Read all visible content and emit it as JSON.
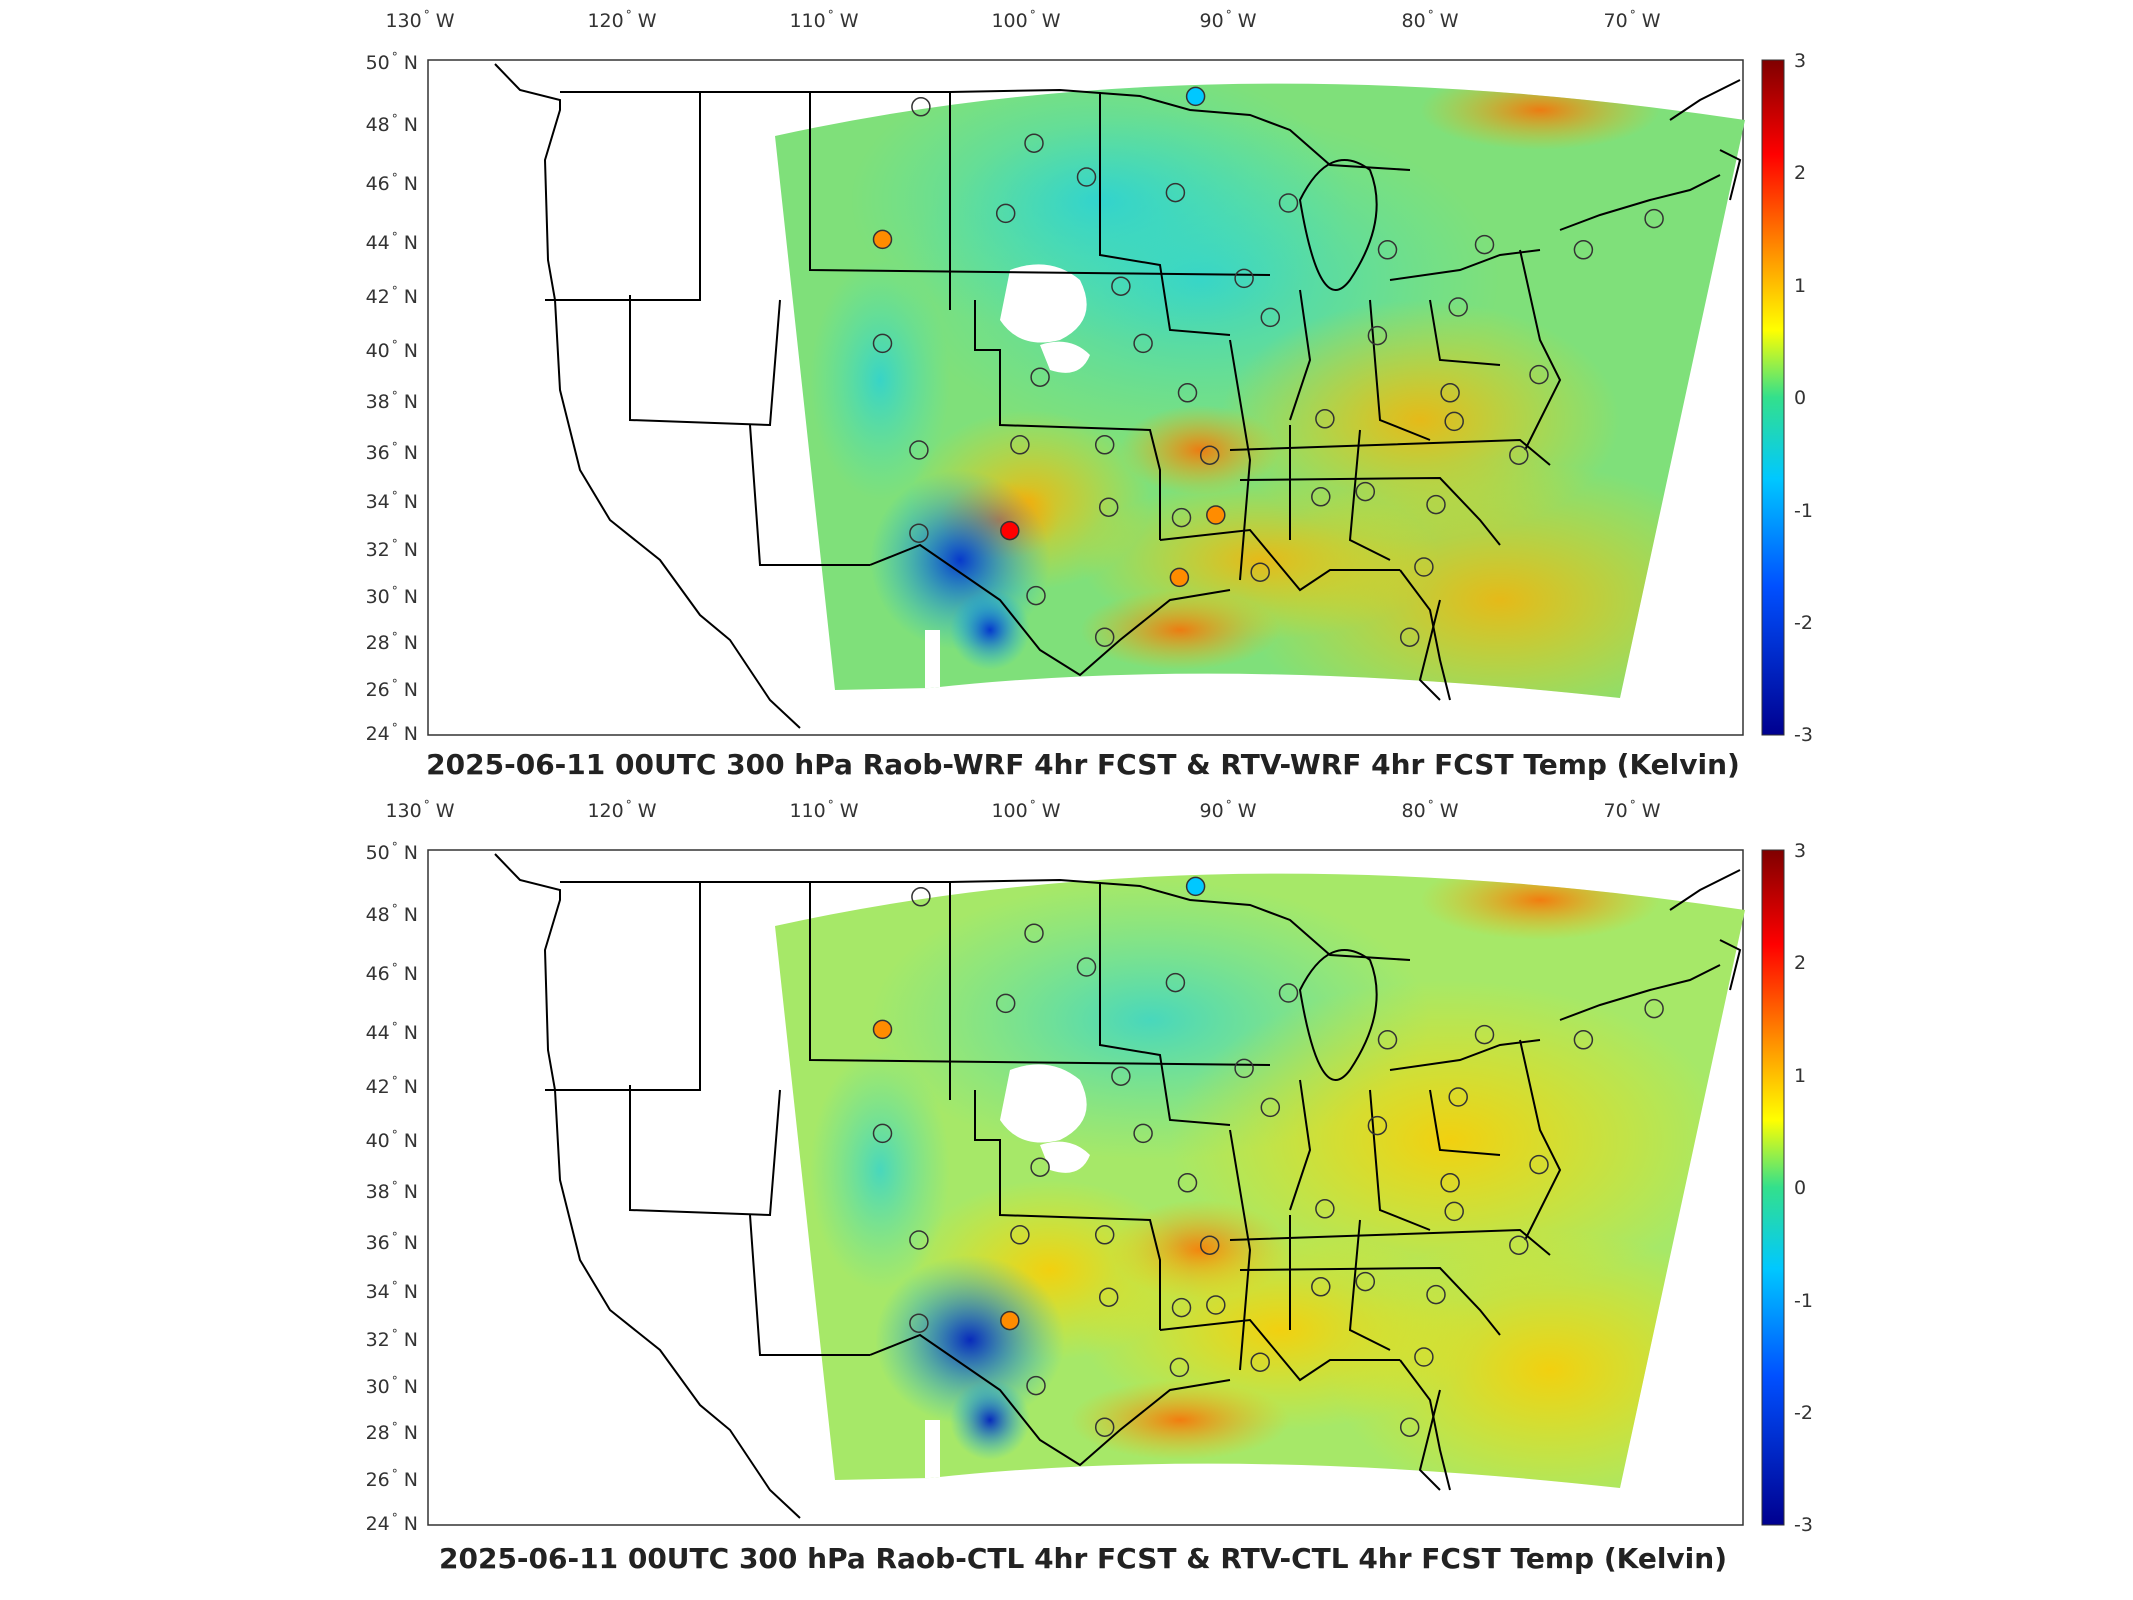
{
  "color_scale": {
    "ticks": [
      "3",
      "2",
      "1",
      "0",
      "-1",
      "-2",
      "-3"
    ],
    "stops": [
      "#7f0000",
      "#ff0000",
      "#ff8c00",
      "#ffff00",
      "#33e08c",
      "#00c8ff",
      "#0050ff",
      "#00008f"
    ]
  },
  "lon_ticks": [
    "130",
    "120",
    "110",
    "100",
    "90",
    "80",
    "70"
  ],
  "lon_suffix": "W",
  "lat_ticks": [
    "50",
    "48",
    "46",
    "44",
    "42",
    "40",
    "38",
    "36",
    "34",
    "32",
    "30",
    "28",
    "26",
    "24"
  ],
  "lat_suffix": "N",
  "panels": [
    {
      "id": "top",
      "title": "2025-06-11 00UTC 300 hPa Raob-WRF 4hr FCST & RTV-WRF 4hr FCST Temp (Kelvin)",
      "stations": [
        {
          "lon": -108.5,
          "lat": 43.1,
          "value": 1.5
        },
        {
          "lon": -102.2,
          "lat": 31.9,
          "value": 2.0
        },
        {
          "lon": -93.0,
          "lat": 48.6,
          "value": -1.0
        },
        {
          "lon": -93.8,
          "lat": 30.1,
          "value": 1.2
        },
        {
          "lon": -92.0,
          "lat": 32.5,
          "value": 1.2
        },
        {
          "lon": -106.6,
          "lat": 48.2,
          "value": 0.0
        },
        {
          "lon": -101.0,
          "lat": 46.8,
          "value": 0.0
        },
        {
          "lon": -98.4,
          "lat": 45.5,
          "value": 0.0
        },
        {
          "lon": -94.0,
          "lat": 44.9,
          "value": 0.0
        },
        {
          "lon": -102.4,
          "lat": 44.1,
          "value": 0.0
        },
        {
          "lon": -88.4,
          "lat": 44.5,
          "value": 0.0
        },
        {
          "lon": -83.5,
          "lat": 42.7,
          "value": 0.0
        },
        {
          "lon": -78.7,
          "lat": 42.9,
          "value": 0.0
        },
        {
          "lon": -73.8,
          "lat": 42.7,
          "value": 0.0
        },
        {
          "lon": -70.3,
          "lat": 43.9,
          "value": 0.0
        },
        {
          "lon": -90.6,
          "lat": 41.6,
          "value": 0.0
        },
        {
          "lon": -96.7,
          "lat": 41.3,
          "value": 0.0
        },
        {
          "lon": -89.3,
          "lat": 40.1,
          "value": 0.0
        },
        {
          "lon": -84.0,
          "lat": 39.4,
          "value": 0.0
        },
        {
          "lon": -80.0,
          "lat": 40.5,
          "value": 0.0
        },
        {
          "lon": -108.5,
          "lat": 39.1,
          "value": 0.0
        },
        {
          "lon": -100.7,
          "lat": 37.8,
          "value": 0.0
        },
        {
          "lon": -95.6,
          "lat": 39.1,
          "value": 0.0
        },
        {
          "lon": -93.4,
          "lat": 37.2,
          "value": 0.0
        },
        {
          "lon": -86.6,
          "lat": 36.2,
          "value": 0.0
        },
        {
          "lon": -80.2,
          "lat": 36.1,
          "value": 0.0
        },
        {
          "lon": -80.4,
          "lat": 37.2,
          "value": 0.0
        },
        {
          "lon": -76.0,
          "lat": 37.9,
          "value": 0.0
        },
        {
          "lon": -106.7,
          "lat": 35.0,
          "value": 0.0
        },
        {
          "lon": -101.7,
          "lat": 35.2,
          "value": 0.0
        },
        {
          "lon": -97.5,
          "lat": 35.2,
          "value": 0.0
        },
        {
          "lon": -92.3,
          "lat": 34.8,
          "value": 0.0
        },
        {
          "lon": -86.8,
          "lat": 33.2,
          "value": 0.0
        },
        {
          "lon": -84.6,
          "lat": 33.4,
          "value": 0.0
        },
        {
          "lon": -81.1,
          "lat": 32.9,
          "value": 0.0
        },
        {
          "lon": -77.0,
          "lat": 34.8,
          "value": 0.0
        },
        {
          "lon": -97.3,
          "lat": 32.8,
          "value": 0.0
        },
        {
          "lon": -93.7,
          "lat": 32.4,
          "value": 0.0
        },
        {
          "lon": -106.7,
          "lat": 31.8,
          "value": 0.0
        },
        {
          "lon": -100.9,
          "lat": 29.4,
          "value": 0.0
        },
        {
          "lon": -97.5,
          "lat": 27.8,
          "value": 0.0
        },
        {
          "lon": -89.8,
          "lat": 30.3,
          "value": 0.0
        },
        {
          "lon": -81.7,
          "lat": 30.5,
          "value": 0.0
        },
        {
          "lon": -82.4,
          "lat": 27.8,
          "value": 0.0
        }
      ]
    },
    {
      "id": "bottom",
      "title": "2025-06-11 00UTC 300 hPa Raob-CTL 4hr FCST & RTV-CTL 4hr FCST Temp (Kelvin)",
      "stations": [
        {
          "lon": -108.5,
          "lat": 43.1,
          "value": 1.5
        },
        {
          "lon": -102.2,
          "lat": 31.9,
          "value": 1.5
        },
        {
          "lon": -93.0,
          "lat": 48.6,
          "value": -1.0
        },
        {
          "lon": -106.6,
          "lat": 48.2,
          "value": 0.0
        },
        {
          "lon": -101.0,
          "lat": 46.8,
          "value": 0.0
        },
        {
          "lon": -98.4,
          "lat": 45.5,
          "value": 0.0
        },
        {
          "lon": -94.0,
          "lat": 44.9,
          "value": 0.0
        },
        {
          "lon": -102.4,
          "lat": 44.1,
          "value": 0.0
        },
        {
          "lon": -88.4,
          "lat": 44.5,
          "value": 0.0
        },
        {
          "lon": -83.5,
          "lat": 42.7,
          "value": 0.0
        },
        {
          "lon": -78.7,
          "lat": 42.9,
          "value": 0.0
        },
        {
          "lon": -73.8,
          "lat": 42.7,
          "value": 0.0
        },
        {
          "lon": -70.3,
          "lat": 43.9,
          "value": 0.0
        },
        {
          "lon": -90.6,
          "lat": 41.6,
          "value": 0.0
        },
        {
          "lon": -96.7,
          "lat": 41.3,
          "value": 0.0
        },
        {
          "lon": -89.3,
          "lat": 40.1,
          "value": 0.0
        },
        {
          "lon": -84.0,
          "lat": 39.4,
          "value": 0.0
        },
        {
          "lon": -80.0,
          "lat": 40.5,
          "value": 0.0
        },
        {
          "lon": -108.5,
          "lat": 39.1,
          "value": 0.0
        },
        {
          "lon": -100.7,
          "lat": 37.8,
          "value": 0.0
        },
        {
          "lon": -95.6,
          "lat": 39.1,
          "value": 0.0
        },
        {
          "lon": -93.4,
          "lat": 37.2,
          "value": 0.0
        },
        {
          "lon": -86.6,
          "lat": 36.2,
          "value": 0.0
        },
        {
          "lon": -80.2,
          "lat": 36.1,
          "value": 0.0
        },
        {
          "lon": -80.4,
          "lat": 37.2,
          "value": 0.0
        },
        {
          "lon": -76.0,
          "lat": 37.9,
          "value": 0.0
        },
        {
          "lon": -106.7,
          "lat": 35.0,
          "value": 0.0
        },
        {
          "lon": -101.7,
          "lat": 35.2,
          "value": 0.0
        },
        {
          "lon": -97.5,
          "lat": 35.2,
          "value": 0.0
        },
        {
          "lon": -92.3,
          "lat": 34.8,
          "value": 0.0
        },
        {
          "lon": -86.8,
          "lat": 33.2,
          "value": 0.0
        },
        {
          "lon": -84.6,
          "lat": 33.4,
          "value": 0.0
        },
        {
          "lon": -81.1,
          "lat": 32.9,
          "value": 0.0
        },
        {
          "lon": -77.0,
          "lat": 34.8,
          "value": 0.0
        },
        {
          "lon": -97.3,
          "lat": 32.8,
          "value": 0.0
        },
        {
          "lon": -93.7,
          "lat": 32.4,
          "value": 0.0
        },
        {
          "lon": -106.7,
          "lat": 31.8,
          "value": 0.0
        },
        {
          "lon": -100.9,
          "lat": 29.4,
          "value": 0.0
        },
        {
          "lon": -97.5,
          "lat": 27.8,
          "value": 0.0
        },
        {
          "lon": -93.8,
          "lat": 30.1,
          "value": 0.0
        },
        {
          "lon": -92.0,
          "lat": 32.5,
          "value": 0.0
        },
        {
          "lon": -89.8,
          "lat": 30.3,
          "value": 0.0
        },
        {
          "lon": -81.7,
          "lat": 30.5,
          "value": 0.0
        },
        {
          "lon": -82.4,
          "lat": 27.8,
          "value": 0.0
        }
      ]
    }
  ]
}
